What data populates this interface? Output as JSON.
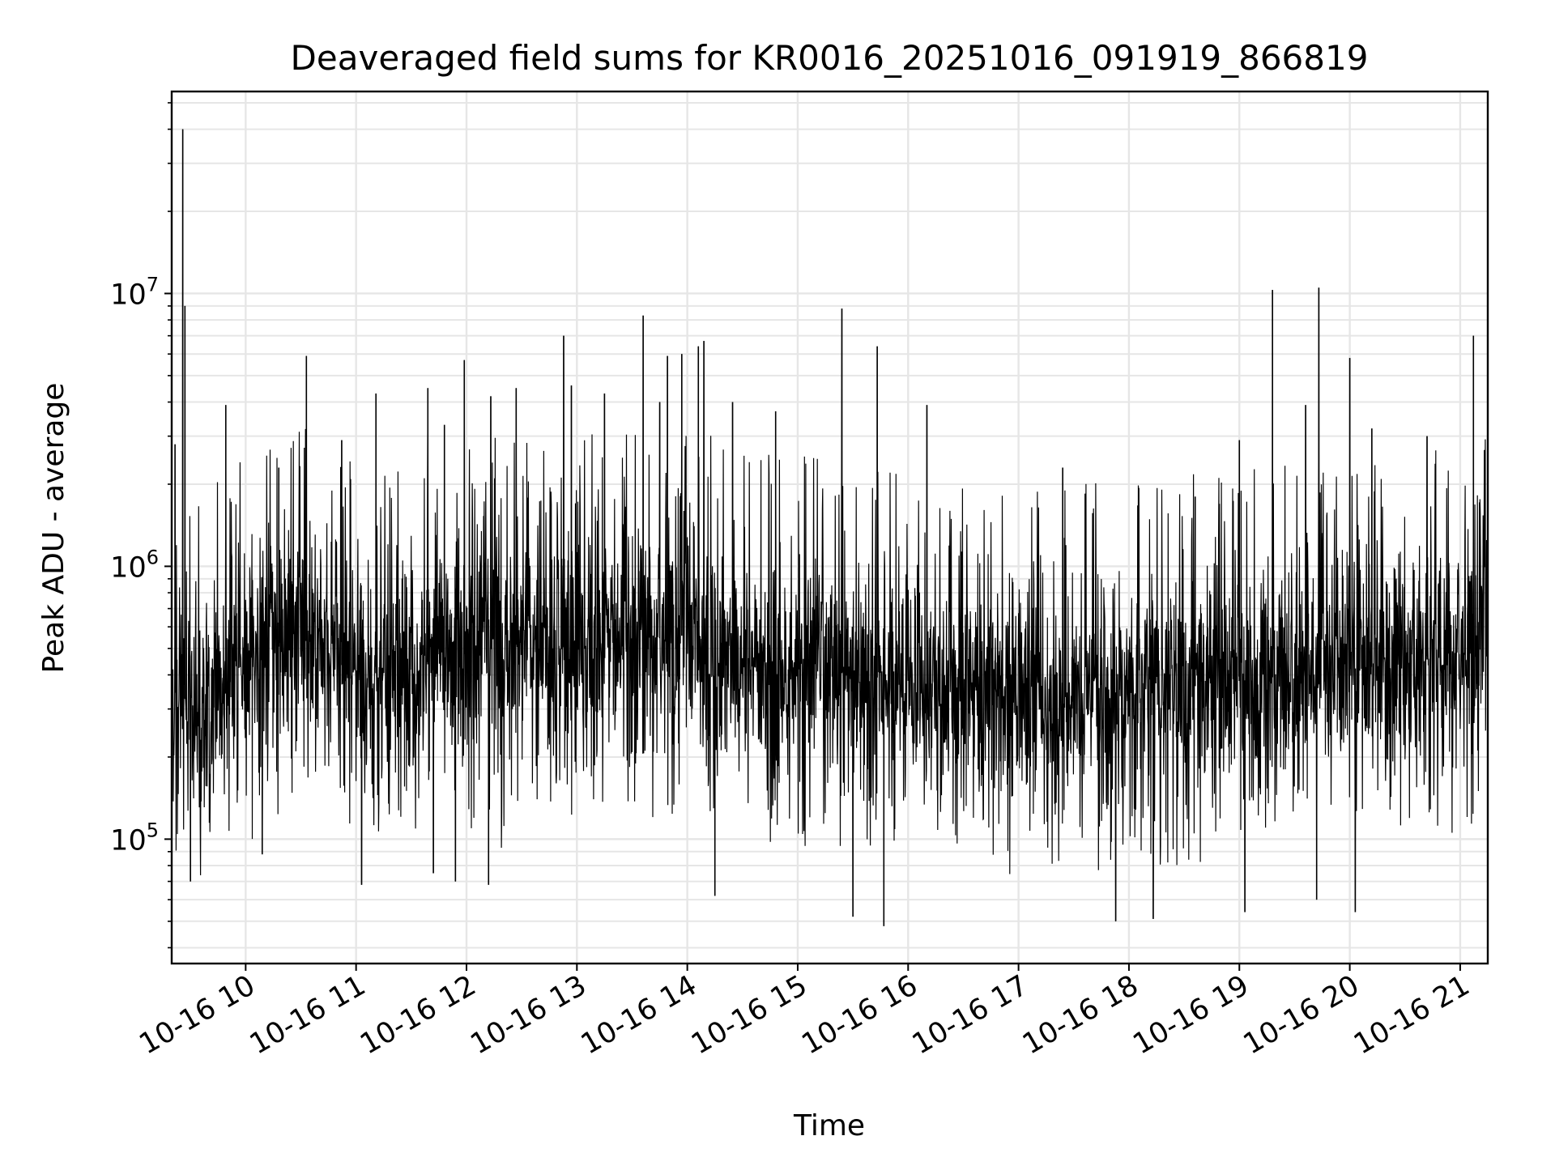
{
  "chart_data": {
    "type": "line",
    "title": "Deaveraged field sums for KR0016_20251016_091919_866819",
    "xlabel": "Time",
    "ylabel": "Peak ADU - average",
    "yscale": "log",
    "ylim": [
      35000,
      55000000
    ],
    "xlim_hours": [
      9.33,
      21.25
    ],
    "grid": true,
    "line_color": "#000000",
    "grid_color": "#e6e6e6",
    "x_ticks": [
      {
        "value": 10,
        "label": "10-16 10"
      },
      {
        "value": 11,
        "label": "10-16 11"
      },
      {
        "value": 12,
        "label": "10-16 12"
      },
      {
        "value": 13,
        "label": "10-16 13"
      },
      {
        "value": 14,
        "label": "10-16 14"
      },
      {
        "value": 15,
        "label": "10-16 15"
      },
      {
        "value": 16,
        "label": "10-16 16"
      },
      {
        "value": 17,
        "label": "10-16 17"
      },
      {
        "value": 18,
        "label": "10-16 18"
      },
      {
        "value": 19,
        "label": "10-16 19"
      },
      {
        "value": 20,
        "label": "10-16 20"
      },
      {
        "value": 21,
        "label": "10-16 21"
      }
    ],
    "y_ticks": [
      {
        "value": 100000,
        "base": "10",
        "exp": "5"
      },
      {
        "value": 1000000,
        "base": "10",
        "exp": "6"
      },
      {
        "value": 10000000,
        "base": "10",
        "exp": "7"
      }
    ],
    "series": [
      {
        "name": "deaveraged field sums",
        "baseline": [
          {
            "t": 9.33,
            "v": 350000
          },
          {
            "t": 9.6,
            "v": 300000
          },
          {
            "t": 10.0,
            "v": 450000
          },
          {
            "t": 10.5,
            "v": 550000
          },
          {
            "t": 11.0,
            "v": 400000
          },
          {
            "t": 11.5,
            "v": 420000
          },
          {
            "t": 12.0,
            "v": 480000
          },
          {
            "t": 12.5,
            "v": 520000
          },
          {
            "t": 13.0,
            "v": 500000
          },
          {
            "t": 13.5,
            "v": 530000
          },
          {
            "t": 14.0,
            "v": 560000
          },
          {
            "t": 14.5,
            "v": 450000
          },
          {
            "t": 15.0,
            "v": 430000
          },
          {
            "t": 15.5,
            "v": 400000
          },
          {
            "t": 16.0,
            "v": 380000
          },
          {
            "t": 16.5,
            "v": 360000
          },
          {
            "t": 17.0,
            "v": 320000
          },
          {
            "t": 17.5,
            "v": 330000
          },
          {
            "t": 18.0,
            "v": 350000
          },
          {
            "t": 18.5,
            "v": 360000
          },
          {
            "t": 19.0,
            "v": 380000
          },
          {
            "t": 19.5,
            "v": 400000
          },
          {
            "t": 20.0,
            "v": 420000
          },
          {
            "t": 20.5,
            "v": 440000
          },
          {
            "t": 21.0,
            "v": 480000
          },
          {
            "t": 21.25,
            "v": 550000
          }
        ],
        "spikes": [
          {
            "t": 9.36,
            "v": 2800000
          },
          {
            "t": 9.43,
            "v": 40000000
          },
          {
            "t": 9.45,
            "v": 9000000
          },
          {
            "t": 9.82,
            "v": 3900000
          },
          {
            "t": 10.3,
            "v": 2300000
          },
          {
            "t": 10.55,
            "v": 5900000
          },
          {
            "t": 10.87,
            "v": 2900000
          },
          {
            "t": 11.18,
            "v": 4300000
          },
          {
            "t": 11.65,
            "v": 4500000
          },
          {
            "t": 11.8,
            "v": 3300000
          },
          {
            "t": 11.98,
            "v": 5700000
          },
          {
            "t": 12.22,
            "v": 4200000
          },
          {
            "t": 12.45,
            "v": 4500000
          },
          {
            "t": 12.88,
            "v": 7000000
          },
          {
            "t": 12.95,
            "v": 4600000
          },
          {
            "t": 13.25,
            "v": 4300000
          },
          {
            "t": 13.6,
            "v": 8300000
          },
          {
            "t": 13.75,
            "v": 4000000
          },
          {
            "t": 13.82,
            "v": 5900000
          },
          {
            "t": 13.95,
            "v": 6000000
          },
          {
            "t": 14.1,
            "v": 6400000
          },
          {
            "t": 14.15,
            "v": 6700000
          },
          {
            "t": 14.41,
            "v": 4000000
          },
          {
            "t": 14.8,
            "v": 3700000
          },
          {
            "t": 15.4,
            "v": 8800000
          },
          {
            "t": 15.72,
            "v": 6400000
          },
          {
            "t": 16.17,
            "v": 3900000
          },
          {
            "t": 17.4,
            "v": 2300000
          },
          {
            "t": 18.6,
            "v": 1800000
          },
          {
            "t": 19.0,
            "v": 2900000
          },
          {
            "t": 19.3,
            "v": 10300000
          },
          {
            "t": 19.6,
            "v": 3900000
          },
          {
            "t": 19.72,
            "v": 10500000
          },
          {
            "t": 20.0,
            "v": 5800000
          },
          {
            "t": 20.2,
            "v": 3200000
          },
          {
            "t": 20.7,
            "v": 3000000
          },
          {
            "t": 21.12,
            "v": 7000000
          }
        ],
        "dips": [
          {
            "t": 9.5,
            "v": 70000
          },
          {
            "t": 10.15,
            "v": 88000
          },
          {
            "t": 11.05,
            "v": 68000
          },
          {
            "t": 11.7,
            "v": 75000
          },
          {
            "t": 11.9,
            "v": 70000
          },
          {
            "t": 12.2,
            "v": 68000
          },
          {
            "t": 14.25,
            "v": 62000
          },
          {
            "t": 15.5,
            "v": 52000
          },
          {
            "t": 15.78,
            "v": 48000
          },
          {
            "t": 17.88,
            "v": 50000
          },
          {
            "t": 18.22,
            "v": 51000
          },
          {
            "t": 19.05,
            "v": 54000
          },
          {
            "t": 19.7,
            "v": 60000
          },
          {
            "t": 20.05,
            "v": 54000
          }
        ]
      }
    ]
  }
}
